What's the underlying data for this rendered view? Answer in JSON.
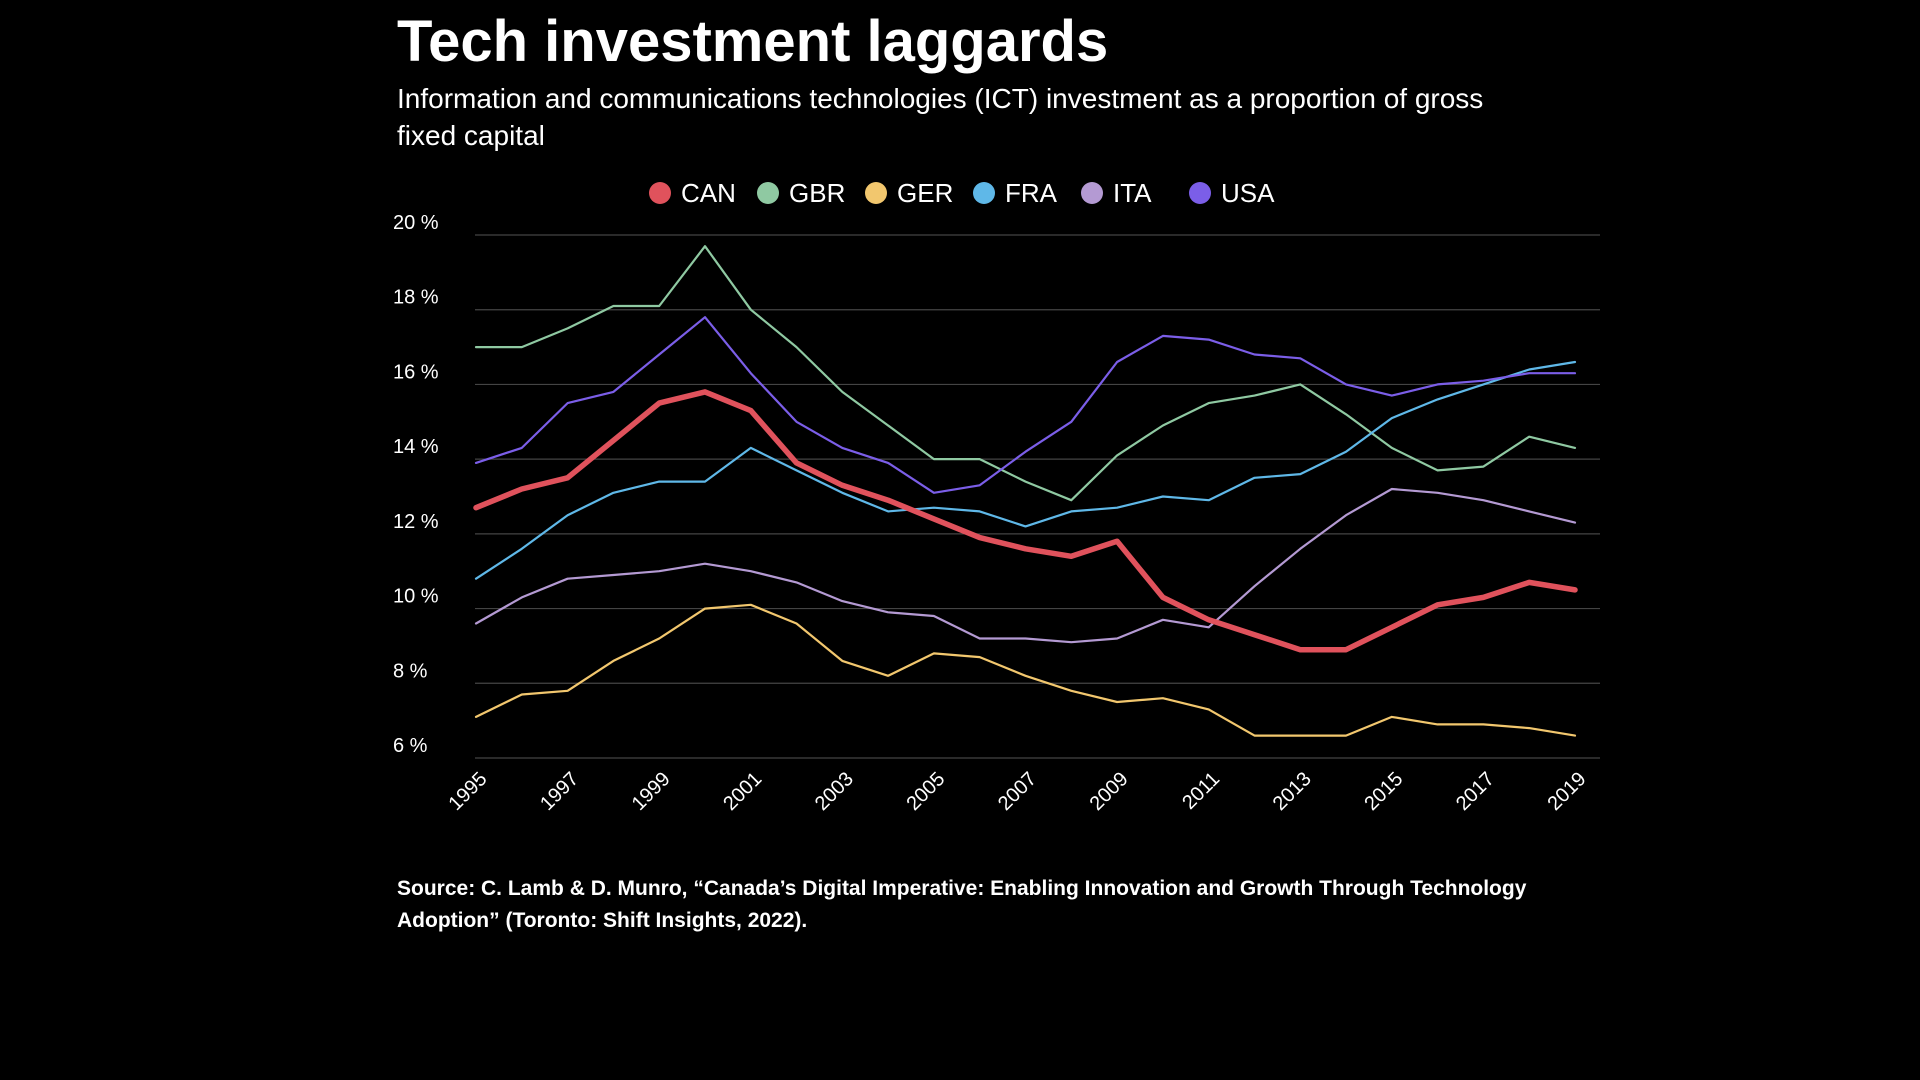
{
  "chart_data": {
    "type": "line",
    "title": "Tech investment laggards",
    "subtitle": "Information and communications technologies (ICT) investment as a proportion of gross fixed capital",
    "xlabel": "",
    "ylabel": "",
    "ylim": [
      6,
      20
    ],
    "y_ticks": [
      20,
      18,
      16,
      14,
      12,
      10,
      8,
      6
    ],
    "y_tick_labels": [
      "20 %",
      "18 %",
      "16 %",
      "14 %",
      "12 %",
      "10 %",
      "8 %",
      "6 %"
    ],
    "x_tick_labels": [
      "1995",
      "1997",
      "1999",
      "2001",
      "2003",
      "2005",
      "2007",
      "2009",
      "2011",
      "2013",
      "2015",
      "2017",
      "2019"
    ],
    "grid": true,
    "legend_position": "top-center",
    "x": [
      1995,
      1996,
      1997,
      1998,
      1999,
      2000,
      2001,
      2002,
      2003,
      2004,
      2005,
      2006,
      2007,
      2008,
      2009,
      2010,
      2011,
      2012,
      2013,
      2014,
      2015,
      2016,
      2017,
      2018,
      2019
    ],
    "series": [
      {
        "name": "CAN",
        "color": "#e0525c",
        "emphasis": true,
        "values": [
          12.7,
          13.2,
          13.5,
          14.5,
          15.5,
          15.8,
          15.3,
          13.9,
          13.3,
          12.9,
          12.4,
          11.9,
          11.6,
          11.4,
          11.8,
          10.3,
          9.7,
          9.3,
          8.9,
          8.9,
          9.5,
          10.1,
          10.3,
          10.7,
          10.5
        ]
      },
      {
        "name": "GBR",
        "color": "#8fc9a2",
        "values": [
          17.0,
          17.0,
          17.5,
          18.1,
          18.1,
          19.7,
          18.0,
          17.0,
          15.8,
          14.9,
          14.0,
          14.0,
          13.4,
          12.9,
          14.1,
          14.9,
          15.5,
          15.7,
          16.0,
          15.2,
          14.3,
          13.7,
          13.8,
          14.6,
          14.3
        ]
      },
      {
        "name": "GER",
        "color": "#f2c76e",
        "values": [
          7.1,
          7.7,
          7.8,
          8.6,
          9.2,
          10.0,
          10.1,
          9.6,
          8.6,
          8.2,
          8.8,
          8.7,
          8.2,
          7.8,
          7.5,
          7.6,
          7.3,
          6.6,
          6.6,
          6.6,
          7.1,
          6.9,
          6.9,
          6.8,
          6.6
        ]
      },
      {
        "name": "FRA",
        "color": "#5fb8e8",
        "values": [
          10.8,
          11.6,
          12.5,
          13.1,
          13.4,
          13.4,
          14.3,
          13.7,
          13.1,
          12.6,
          12.7,
          12.6,
          12.2,
          12.6,
          12.7,
          13.0,
          12.9,
          13.5,
          13.6,
          14.2,
          15.1,
          15.6,
          16.0,
          16.4,
          16.6
        ]
      },
      {
        "name": "ITA",
        "color": "#b49ad3",
        "values": [
          9.6,
          10.3,
          10.8,
          10.9,
          11.0,
          11.2,
          11.0,
          10.7,
          10.2,
          9.9,
          9.8,
          9.2,
          9.2,
          9.1,
          9.2,
          9.7,
          9.5,
          10.6,
          11.6,
          12.5,
          13.2,
          13.1,
          12.9,
          12.6,
          12.3
        ]
      },
      {
        "name": "USA",
        "color": "#7b5ee8",
        "values": [
          13.9,
          14.3,
          15.5,
          15.8,
          16.8,
          17.8,
          16.3,
          15.0,
          14.3,
          13.9,
          13.1,
          13.3,
          14.2,
          15.0,
          16.6,
          17.3,
          17.2,
          16.8,
          16.7,
          16.0,
          15.7,
          16.0,
          16.1,
          16.3,
          16.3
        ]
      }
    ]
  },
  "source": "Source: C. Lamb & D. Munro, “Canada’s Digital Imperative: Enabling Innovation and Growth Through Technology Adoption” (Toronto: Shift Insights, 2022).",
  "colors": {
    "background": "#000000",
    "text": "#ffffff",
    "gridline": "#444444"
  }
}
